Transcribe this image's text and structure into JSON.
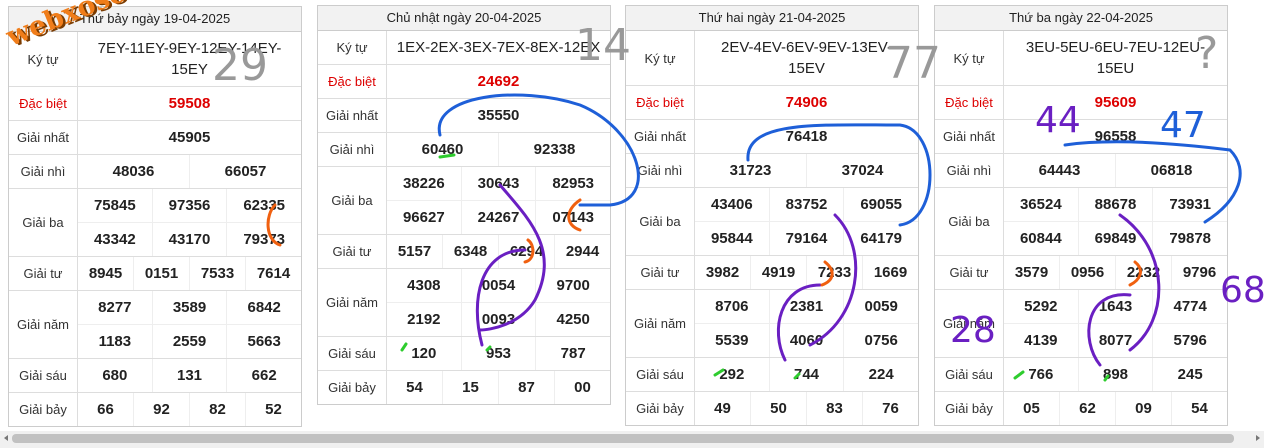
{
  "watermark": "webxoso.net",
  "tables": [
    {
      "title": "Thứ bảy ngày 19-04-2025",
      "rows": [
        {
          "label": "Ký tự",
          "lines": [
            [
              "7EY-11EY-9EY-12EY-14EY-15EY"
            ]
          ]
        },
        {
          "label": "Đặc biệt",
          "lines": [
            [
              "59508"
            ]
          ]
        },
        {
          "label": "Giải nhất",
          "lines": [
            [
              "45905"
            ]
          ]
        },
        {
          "label": "Giải nhì",
          "lines": [
            [
              "48036",
              "66057"
            ]
          ]
        },
        {
          "label": "Giải ba",
          "lines": [
            [
              "75845",
              "97356",
              "62335"
            ],
            [
              "43342",
              "43170",
              "79373"
            ]
          ]
        },
        {
          "label": "Giải tư",
          "lines": [
            [
              "8945",
              "0151",
              "7533",
              "7614"
            ]
          ]
        },
        {
          "label": "Giải năm",
          "lines": [
            [
              "8277",
              "3589",
              "6842"
            ],
            [
              "1183",
              "2559",
              "5663"
            ]
          ]
        },
        {
          "label": "Giải sáu",
          "lines": [
            [
              "680",
              "131",
              "662"
            ]
          ]
        },
        {
          "label": "Giải bảy",
          "lines": [
            [
              "66",
              "92",
              "82",
              "52"
            ]
          ]
        }
      ]
    },
    {
      "title": "Chủ nhật ngày 20-04-2025",
      "rows": [
        {
          "label": "Ký tự",
          "lines": [
            [
              "1EX-2EX-3EX-7EX-8EX-12EX"
            ]
          ]
        },
        {
          "label": "Đặc biệt",
          "lines": [
            [
              "24692"
            ]
          ]
        },
        {
          "label": "Giải nhất",
          "lines": [
            [
              "35550"
            ]
          ]
        },
        {
          "label": "Giải nhì",
          "lines": [
            [
              "60460",
              "92338"
            ]
          ]
        },
        {
          "label": "Giải ba",
          "lines": [
            [
              "38226",
              "30643",
              "82953"
            ],
            [
              "96627",
              "24267",
              "07143"
            ]
          ]
        },
        {
          "label": "Giải tư",
          "lines": [
            [
              "5157",
              "6348",
              "6294",
              "2944"
            ]
          ]
        },
        {
          "label": "Giải năm",
          "lines": [
            [
              "4308",
              "0054",
              "9700"
            ],
            [
              "2192",
              "0093",
              "4250"
            ]
          ]
        },
        {
          "label": "Giải sáu",
          "lines": [
            [
              "120",
              "953",
              "787"
            ]
          ]
        },
        {
          "label": "Giải bảy",
          "lines": [
            [
              "54",
              "15",
              "87",
              "00"
            ]
          ]
        }
      ]
    },
    {
      "title": "Thứ hai ngày 21-04-2025",
      "rows": [
        {
          "label": "Ký tự",
          "lines": [
            [
              "2EV-4EV-6EV-9EV-13EV-15EV"
            ]
          ]
        },
        {
          "label": "Đặc biệt",
          "lines": [
            [
              "74906"
            ]
          ]
        },
        {
          "label": "Giải nhất",
          "lines": [
            [
              "76418"
            ]
          ]
        },
        {
          "label": "Giải nhì",
          "lines": [
            [
              "31723",
              "37024"
            ]
          ]
        },
        {
          "label": "Giải ba",
          "lines": [
            [
              "43406",
              "83752",
              "69055"
            ],
            [
              "95844",
              "79164",
              "64179"
            ]
          ]
        },
        {
          "label": "Giải tư",
          "lines": [
            [
              "3982",
              "4919",
              "7233",
              "1669"
            ]
          ]
        },
        {
          "label": "Giải năm",
          "lines": [
            [
              "8706",
              "2381",
              "0059"
            ],
            [
              "5539",
              "4060",
              "0756"
            ]
          ]
        },
        {
          "label": "Giải sáu",
          "lines": [
            [
              "292",
              "744",
              "224"
            ]
          ]
        },
        {
          "label": "Giải bảy",
          "lines": [
            [
              "49",
              "50",
              "83",
              "76"
            ]
          ]
        }
      ]
    },
    {
      "title": "Thứ ba ngày 22-04-2025",
      "rows": [
        {
          "label": "Ký tự",
          "lines": [
            [
              "3EU-5EU-6EU-7EU-12EU-15EU"
            ]
          ]
        },
        {
          "label": "Đặc biệt",
          "lines": [
            [
              "95609"
            ]
          ]
        },
        {
          "label": "Giải nhất",
          "lines": [
            [
              "96558"
            ]
          ]
        },
        {
          "label": "Giải nhì",
          "lines": [
            [
              "64443",
              "06818"
            ]
          ]
        },
        {
          "label": "Giải ba",
          "lines": [
            [
              "36524",
              "88678",
              "73931"
            ],
            [
              "60844",
              "69849",
              "79878"
            ]
          ]
        },
        {
          "label": "Giải tư",
          "lines": [
            [
              "3579",
              "0956",
              "2232",
              "9796"
            ]
          ]
        },
        {
          "label": "Giải năm",
          "lines": [
            [
              "5292",
              "1643",
              "4774"
            ],
            [
              "4139",
              "8077",
              "5796"
            ]
          ]
        },
        {
          "label": "Giải sáu",
          "lines": [
            [
              "766",
              "898",
              "245"
            ]
          ]
        },
        {
          "label": "Giải bảy",
          "lines": [
            [
              "05",
              "62",
              "09",
              "54"
            ]
          ]
        }
      ]
    }
  ],
  "annotations": [
    "29",
    "14",
    "77",
    "?",
    "44",
    "47",
    "28",
    "68"
  ]
}
